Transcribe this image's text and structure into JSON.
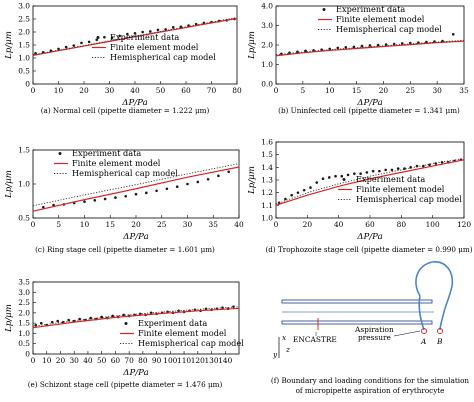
{
  "chart_data": [
    {
      "type": "scatter",
      "panel_label": "(a)",
      "caption": "(a) Normal cell (pipette diameter = 1.222 μm)",
      "xlabel": "ΔP/Pa",
      "ylabel": "Lp/μm",
      "xlim": [
        0,
        80
      ],
      "ylim": [
        0.0,
        3.0
      ],
      "xticks": [
        0,
        10,
        20,
        30,
        40,
        50,
        60,
        70,
        80
      ],
      "yticks": [
        0.0,
        0.5,
        1.0,
        1.5,
        2.0,
        2.5,
        3.0
      ],
      "ytick_labels": [
        "0",
        "0.5",
        "1.0",
        "1.5",
        "2.0",
        "2.5",
        "3.0"
      ],
      "legend_position": "center-right",
      "grid": false,
      "series": [
        {
          "name": "Experiment data",
          "kind": "points",
          "color": "#1a1a1a",
          "x": [
            1,
            4,
            7,
            10,
            13,
            16,
            19,
            22,
            25,
            28,
            31,
            34,
            37,
            40,
            43,
            46,
            49,
            52,
            55,
            58,
            61,
            64,
            67,
            70,
            73,
            76,
            79
          ],
          "y": [
            1.18,
            1.22,
            1.28,
            1.35,
            1.42,
            1.48,
            1.58,
            1.62,
            1.7,
            1.8,
            1.78,
            1.85,
            1.92,
            1.95,
            2.0,
            2.02,
            2.08,
            2.1,
            2.18,
            2.2,
            2.25,
            2.3,
            2.35,
            2.38,
            2.42,
            2.45,
            2.5
          ]
        },
        {
          "name": "Finite element model",
          "kind": "line",
          "color": "#d62728",
          "x": [
            0,
            10,
            20,
            30,
            40,
            50,
            60,
            70,
            80
          ],
          "y": [
            1.1,
            1.28,
            1.46,
            1.64,
            1.82,
            2.0,
            2.17,
            2.35,
            2.52
          ]
        },
        {
          "name": "Hemispherical cap model",
          "kind": "dotted",
          "color": "#333333",
          "x": [
            0,
            10,
            20,
            30,
            40,
            50,
            60,
            70,
            80
          ],
          "y": [
            1.12,
            1.3,
            1.48,
            1.66,
            1.84,
            2.02,
            2.2,
            2.38,
            2.56
          ]
        }
      ]
    },
    {
      "type": "scatter",
      "panel_label": "(b)",
      "caption": "(b) Uninfected cell (pipette diameter = 1.341 μm)",
      "xlabel": "ΔP/Pa",
      "ylabel": "Lp/μm",
      "xlim": [
        0,
        35
      ],
      "ylim": [
        0,
        4
      ],
      "xticks": [
        0,
        5,
        10,
        15,
        20,
        25,
        30,
        35
      ],
      "yticks": [
        0,
        1,
        2,
        3,
        4
      ],
      "legend_position": "top-right",
      "grid": false,
      "series": [
        {
          "name": "Experiment data",
          "kind": "points",
          "color": "#1a1a1a",
          "x": [
            1,
            2.5,
            4,
            5.5,
            7,
            8.5,
            10,
            11.5,
            13,
            14.5,
            16,
            17.5,
            19,
            20.5,
            22,
            23.5,
            25,
            26.5,
            28,
            29.5,
            31,
            33
          ],
          "y": [
            1.55,
            1.6,
            1.65,
            1.7,
            1.72,
            1.76,
            1.8,
            1.85,
            1.88,
            1.9,
            1.95,
            1.98,
            2.0,
            2.02,
            2.05,
            2.08,
            2.1,
            2.12,
            2.15,
            2.18,
            2.2,
            2.55
          ]
        },
        {
          "name": "Finite element model",
          "kind": "line",
          "color": "#d62728",
          "x": [
            0,
            5,
            10,
            15,
            20,
            25,
            30,
            35
          ],
          "y": [
            1.45,
            1.6,
            1.72,
            1.82,
            1.92,
            2.02,
            2.12,
            2.2
          ]
        },
        {
          "name": "Hemispherical cap model",
          "kind": "dotted",
          "color": "#333333",
          "x": [
            0,
            5,
            10,
            15,
            20,
            25,
            30,
            35
          ],
          "y": [
            1.5,
            1.64,
            1.76,
            1.86,
            1.96,
            2.06,
            2.15,
            2.24
          ]
        }
      ]
    },
    {
      "type": "scatter",
      "panel_label": "(c)",
      "caption": "(c) Ring stage cell (pipette diameter = 1.601 μm)",
      "xlabel": "ΔP/Pa",
      "ylabel": "Lp/μm",
      "xlim": [
        0,
        40
      ],
      "ylim": [
        0.5,
        1.5
      ],
      "xticks": [
        0,
        5,
        10,
        15,
        20,
        25,
        30,
        35,
        40
      ],
      "yticks": [
        0.5,
        1.0,
        1.5
      ],
      "legend_position": "top-left",
      "grid": false,
      "series": [
        {
          "name": "Experiment data",
          "kind": "points",
          "color": "#1a1a1a",
          "x": [
            2,
            4,
            6,
            8,
            10,
            12,
            14,
            16,
            18,
            20,
            22,
            24,
            26,
            28,
            30,
            32,
            34,
            36,
            38
          ],
          "y": [
            0.66,
            0.69,
            0.7,
            0.72,
            0.74,
            0.76,
            0.78,
            0.8,
            0.82,
            0.85,
            0.87,
            0.9,
            0.93,
            0.96,
            1.0,
            1.03,
            1.07,
            1.12,
            1.18
          ]
        },
        {
          "name": "Finite element model",
          "kind": "line",
          "color": "#d62728",
          "x": [
            0,
            10,
            20,
            30,
            40
          ],
          "y": [
            0.6,
            0.77,
            0.93,
            1.1,
            1.25
          ]
        },
        {
          "name": "Hemispherical cap model",
          "kind": "dotted",
          "color": "#333333",
          "x": [
            0,
            10,
            20,
            30,
            40
          ],
          "y": [
            0.68,
            0.84,
            0.99,
            1.15,
            1.3
          ]
        }
      ]
    },
    {
      "type": "scatter",
      "panel_label": "(d)",
      "caption": "(d) Trophozoite stage cell (pipette diameter = 0.990 μm)",
      "xlabel": "ΔP/Pa",
      "ylabel": "Lp/μm",
      "xlim": [
        0,
        120
      ],
      "ylim": [
        1.0,
        1.6
      ],
      "xticks": [
        0,
        20,
        40,
        60,
        80,
        100,
        120
      ],
      "yticks": [
        1.0,
        1.1,
        1.2,
        1.3,
        1.4,
        1.5,
        1.6
      ],
      "legend_position": "center-right",
      "grid": false,
      "series": [
        {
          "name": "Experiment data",
          "kind": "points",
          "color": "#1a1a1a",
          "x": [
            2,
            6,
            10,
            14,
            18,
            22,
            26,
            30,
            34,
            38,
            42,
            46,
            50,
            54,
            58,
            62,
            66,
            70,
            74,
            78,
            82,
            86,
            90,
            94,
            98,
            102,
            106,
            110,
            114,
            118
          ],
          "y": [
            1.12,
            1.15,
            1.18,
            1.2,
            1.22,
            1.24,
            1.28,
            1.31,
            1.32,
            1.33,
            1.33,
            1.34,
            1.35,
            1.35,
            1.36,
            1.37,
            1.37,
            1.38,
            1.38,
            1.39,
            1.39,
            1.4,
            1.41,
            1.41,
            1.42,
            1.43,
            1.44,
            1.44,
            1.45,
            1.46
          ]
        },
        {
          "name": "Finite element model",
          "kind": "line",
          "color": "#d62728",
          "x": [
            0,
            20,
            40,
            60,
            80,
            100,
            120
          ],
          "y": [
            1.1,
            1.18,
            1.25,
            1.31,
            1.36,
            1.41,
            1.46
          ]
        },
        {
          "name": "Hemispherical cap model",
          "kind": "dotted",
          "color": "#333333",
          "x": [
            0,
            20,
            40,
            60,
            80,
            100,
            120
          ],
          "y": [
            1.11,
            1.2,
            1.27,
            1.33,
            1.38,
            1.43,
            1.47
          ]
        }
      ]
    },
    {
      "type": "scatter",
      "panel_label": "(e)",
      "caption": "(e) Schizont stage cell (pipette diameter = 1.476 μm)",
      "xlabel": "ΔP/Pa",
      "ylabel": "Lp/μm",
      "xlim": [
        0,
        150
      ],
      "ylim": [
        0,
        3.5
      ],
      "xticks": [
        0,
        10,
        20,
        30,
        40,
        50,
        60,
        70,
        80,
        90,
        100,
        110,
        120,
        130,
        140
      ],
      "yticks": [
        0,
        0.5,
        1.0,
        1.5,
        2.0,
        2.5,
        3.0,
        3.5
      ],
      "ytick_labels": [
        "0",
        "0.5",
        "1.0",
        "1.5",
        "2.0",
        "2.5",
        "3.0",
        "3.5"
      ],
      "legend_position": "bottom-right",
      "grid": false,
      "series": [
        {
          "name": "Experiment data",
          "kind": "points",
          "color": "#1a1a1a",
          "x": [
            2,
            6,
            10,
            14,
            18,
            22,
            26,
            30,
            34,
            38,
            42,
            46,
            50,
            54,
            58,
            62,
            66,
            70,
            74,
            78,
            82,
            86,
            90,
            94,
            98,
            102,
            106,
            110,
            114,
            118,
            122,
            126,
            130,
            134,
            138,
            142,
            146
          ],
          "y": [
            1.4,
            1.5,
            1.4,
            1.55,
            1.6,
            1.55,
            1.65,
            1.6,
            1.7,
            1.65,
            1.75,
            1.7,
            1.8,
            1.75,
            1.85,
            1.8,
            1.9,
            1.85,
            1.9,
            1.95,
            1.9,
            2.0,
            1.95,
            2.0,
            2.05,
            2.0,
            2.1,
            2.05,
            2.1,
            2.15,
            2.1,
            2.2,
            2.15,
            2.2,
            2.25,
            2.2,
            2.3
          ]
        },
        {
          "name": "Finite element model",
          "kind": "line",
          "color": "#d62728",
          "x": [
            0,
            30,
            60,
            90,
            120,
            150
          ],
          "y": [
            1.28,
            1.55,
            1.78,
            1.95,
            2.1,
            2.22
          ]
        },
        {
          "name": "Hemispherical cap model",
          "kind": "dotted",
          "color": "#333333",
          "x": [
            0,
            30,
            60,
            90,
            120,
            150
          ],
          "y": [
            1.35,
            1.62,
            1.85,
            2.02,
            2.17,
            2.3
          ]
        }
      ]
    }
  ],
  "diagram": {
    "caption_line1": "(f) Boundary and loading conditions for the simulation",
    "caption_line2": "of micropipette aspiration of erythrocyte",
    "labels": {
      "x_axis": "x",
      "y_axis": "y",
      "z_axis": "z",
      "encastre": "ENCASTRE",
      "aspiration_line1": "Aspiration",
      "aspiration_line2": "pressure",
      "point_a": "A",
      "point_b": "B"
    },
    "colors": {
      "cell": "#4a86c8",
      "pipette": "#1f3a8a",
      "marker": "#d62728"
    }
  }
}
